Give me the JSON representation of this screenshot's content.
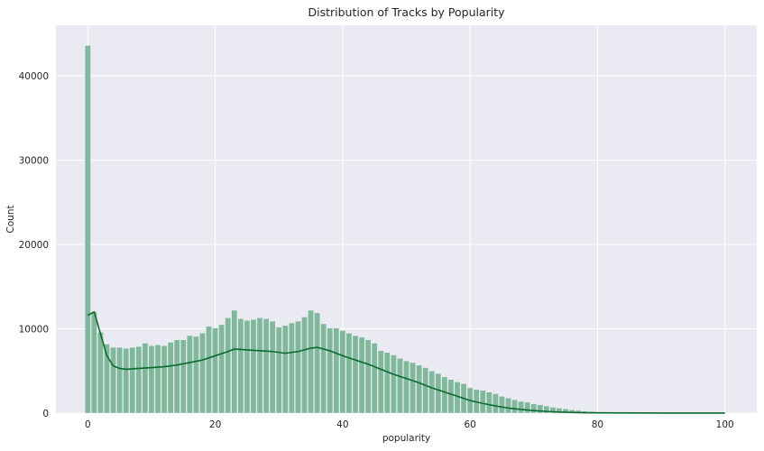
{
  "chart_data": {
    "type": "bar",
    "title": "Distribution of Tracks by Popularity",
    "xlabel": "popularity",
    "ylabel": "Count",
    "xlim": [
      -5,
      105
    ],
    "ylim": [
      0,
      46000
    ],
    "x_ticks": [
      0,
      20,
      40,
      60,
      80,
      100
    ],
    "y_ticks": [
      0,
      10000,
      20000,
      30000,
      40000
    ],
    "grid": true,
    "colors": {
      "background": "#EAEAF2",
      "grid": "#FFFFFF",
      "bar_fill": "#7FB89A",
      "bar_edge": "#EAEAF2",
      "kde_line": "#0B6B2E"
    },
    "series": [
      {
        "type": "histogram",
        "x": [
          0,
          1,
          2,
          3,
          4,
          5,
          6,
          7,
          8,
          9,
          10,
          11,
          12,
          13,
          14,
          15,
          16,
          17,
          18,
          19,
          20,
          21,
          22,
          23,
          24,
          25,
          26,
          27,
          28,
          29,
          30,
          31,
          32,
          33,
          34,
          35,
          36,
          37,
          38,
          39,
          40,
          41,
          42,
          43,
          44,
          45,
          46,
          47,
          48,
          49,
          50,
          51,
          52,
          53,
          54,
          55,
          56,
          57,
          58,
          59,
          60,
          61,
          62,
          63,
          64,
          65,
          66,
          67,
          68,
          69,
          70,
          71,
          72,
          73,
          74,
          75,
          76,
          77,
          78,
          79,
          80,
          81,
          82,
          83,
          84,
          85,
          86,
          87,
          88,
          89,
          90,
          91,
          92,
          93,
          94,
          95,
          96,
          97,
          98,
          99,
          100
        ],
        "values": [
          43600,
          12000,
          9600,
          8200,
          7800,
          7800,
          7700,
          7800,
          7900,
          8300,
          8000,
          8100,
          8000,
          8400,
          8700,
          8700,
          9200,
          9100,
          9500,
          10300,
          10100,
          10500,
          11300,
          12200,
          11200,
          11000,
          11100,
          11300,
          11200,
          10900,
          10200,
          10400,
          10700,
          10900,
          11400,
          12200,
          11900,
          10600,
          10100,
          10100,
          9800,
          9500,
          9200,
          9000,
          8700,
          8300,
          7400,
          7200,
          6900,
          6500,
          6200,
          6000,
          5700,
          5400,
          5000,
          4700,
          4300,
          4000,
          3700,
          3500,
          3000,
          2800,
          2700,
          2500,
          2300,
          2000,
          1800,
          1600,
          1400,
          1300,
          1100,
          1000,
          850,
          700,
          600,
          500,
          400,
          330,
          260,
          200,
          150,
          110,
          80,
          60,
          40,
          30,
          20,
          15,
          10,
          8,
          5,
          4,
          3,
          2,
          2,
          1,
          1,
          1,
          0,
          0,
          0
        ]
      },
      {
        "type": "kde",
        "x": [
          0,
          1,
          2,
          3,
          4,
          5,
          6,
          8,
          10,
          12,
          14,
          16,
          18,
          20,
          22,
          23,
          25,
          27,
          29,
          31,
          33,
          35,
          36,
          38,
          40,
          42,
          44,
          46,
          48,
          50,
          52,
          54,
          56,
          58,
          60,
          62,
          64,
          66,
          68,
          70,
          72,
          74,
          76,
          78,
          80,
          85,
          90,
          95,
          100
        ],
        "values": [
          11600,
          12000,
          9400,
          6800,
          5600,
          5300,
          5200,
          5300,
          5400,
          5500,
          5700,
          6000,
          6300,
          6800,
          7300,
          7600,
          7500,
          7400,
          7300,
          7100,
          7300,
          7700,
          7800,
          7400,
          6800,
          6300,
          5800,
          5200,
          4600,
          4100,
          3600,
          3000,
          2500,
          2000,
          1500,
          1150,
          850,
          600,
          430,
          300,
          200,
          130,
          80,
          50,
          30,
          15,
          10,
          5,
          3
        ]
      }
    ]
  }
}
